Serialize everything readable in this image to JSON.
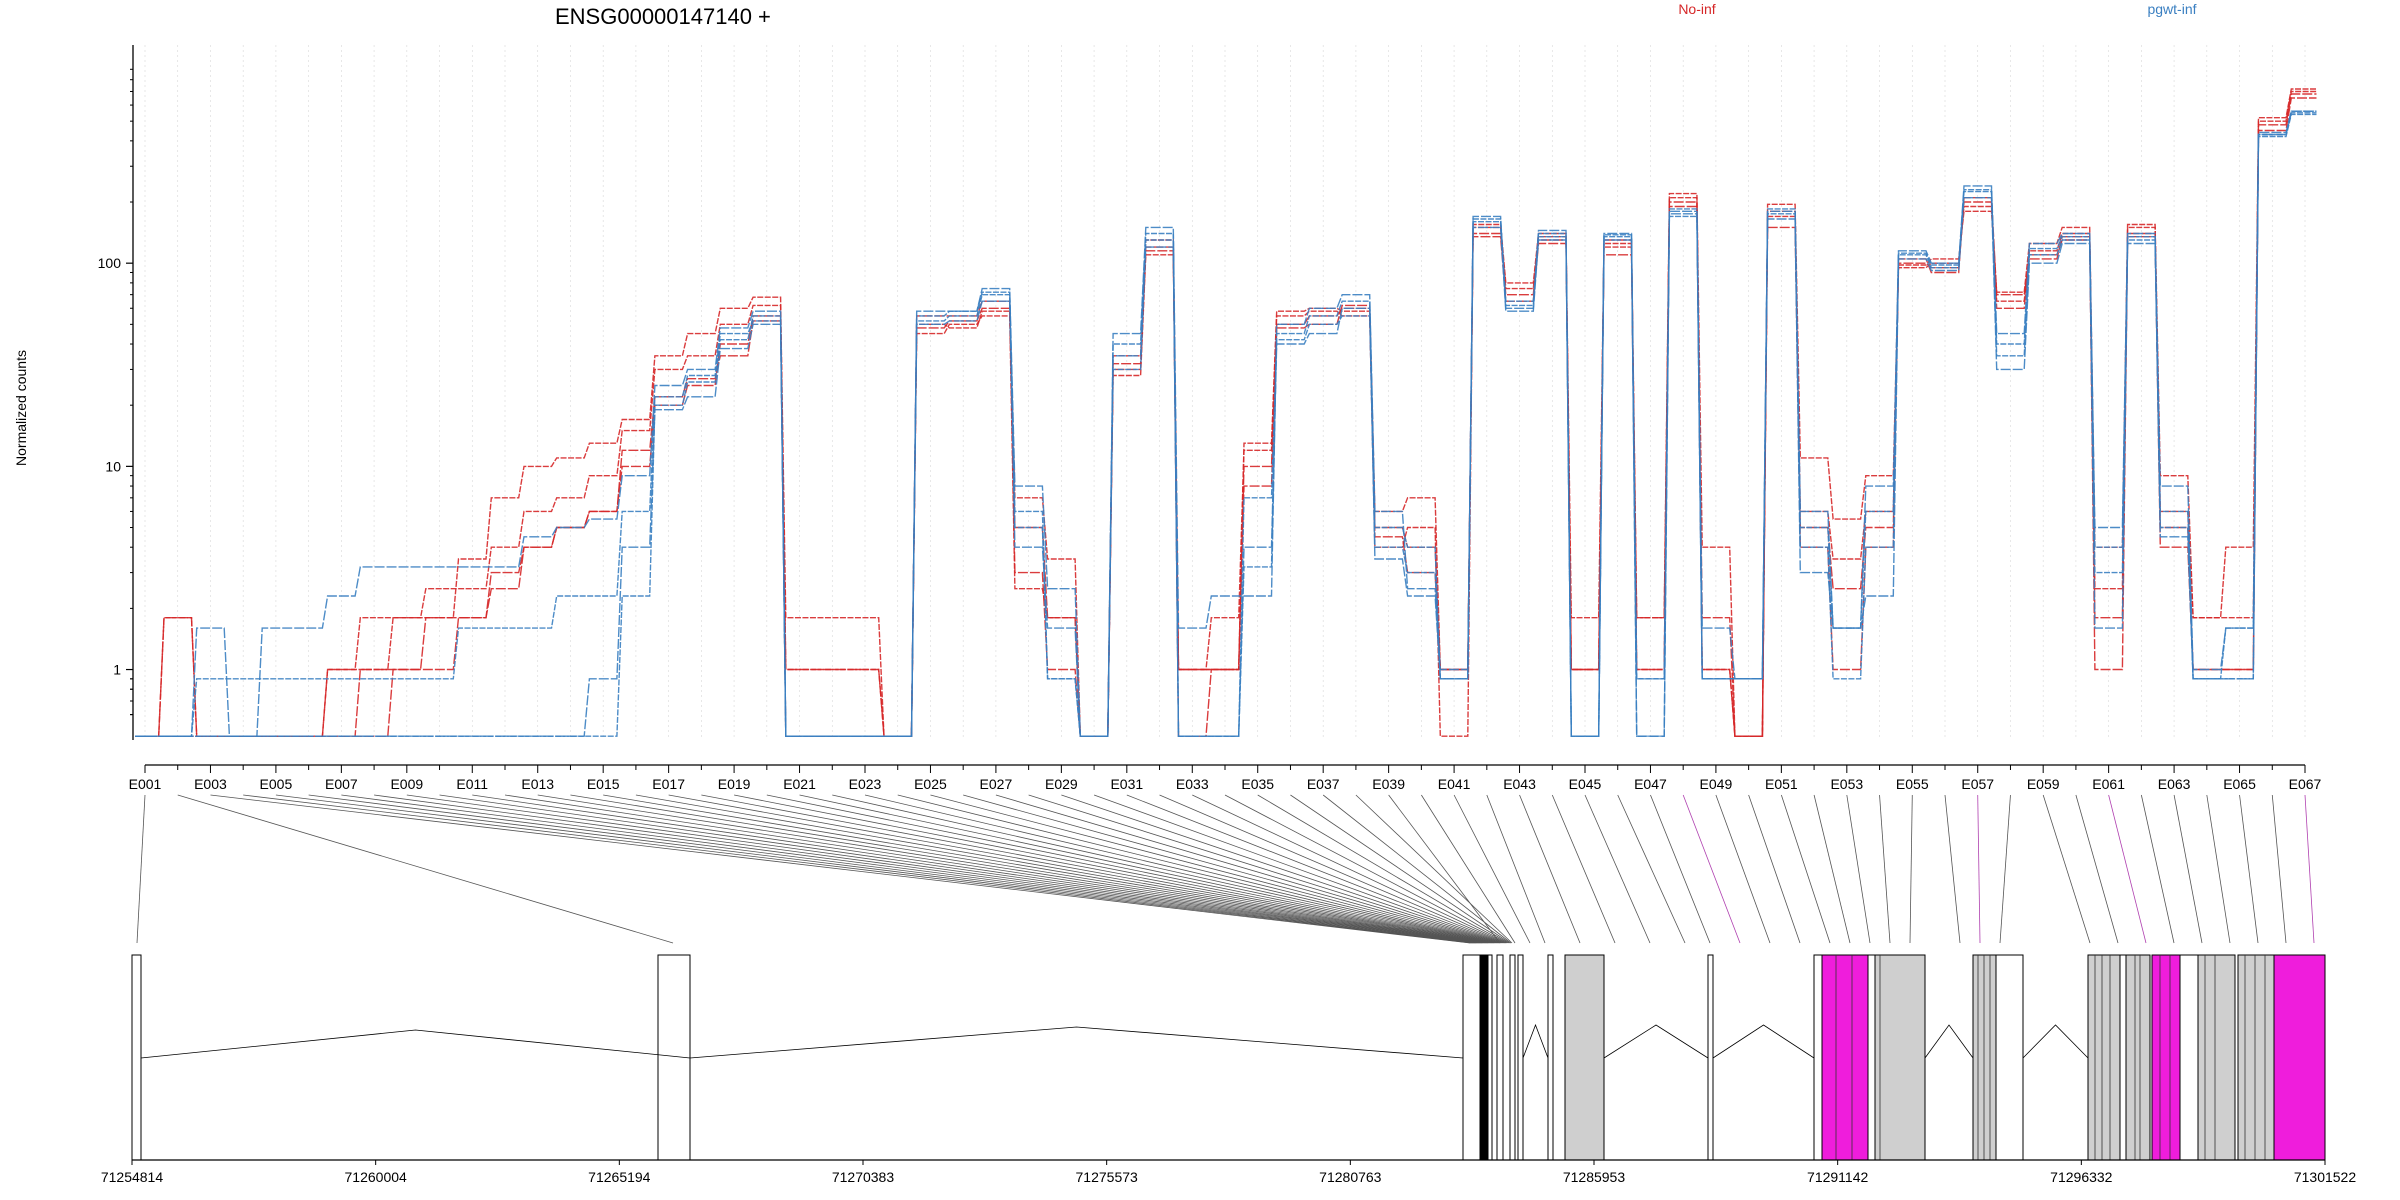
{
  "chart_data": {
    "type": "line",
    "title": "ENSG00000147140 +",
    "ylabel": "Normalized counts",
    "xlabel": "",
    "y_scale": "log",
    "y_ticks": [
      1,
      10,
      100
    ],
    "y_tick_labels": [
      "1",
      "10",
      "100"
    ],
    "ylim": [
      0.5,
      900
    ],
    "grid": "faint vertical lines at each exon bin",
    "legend": {
      "position": "top-right",
      "entries": [
        {
          "label": "No-inf",
          "color": "#d62728"
        },
        {
          "label": "pgwt-inf",
          "color": "#3a7fc1"
        }
      ]
    },
    "exon_bins": [
      "E001",
      "E002",
      "E003",
      "E004",
      "E005",
      "E006",
      "E007",
      "E008",
      "E009",
      "E010",
      "E011",
      "E012",
      "E013",
      "E014",
      "E015",
      "E016",
      "E017",
      "E018",
      "E019",
      "E020",
      "E021",
      "E022",
      "E023",
      "E024",
      "E025",
      "E026",
      "E027",
      "E028",
      "E029",
      "E030",
      "E031",
      "E032",
      "E033",
      "E034",
      "E035",
      "E036",
      "E037",
      "E038",
      "E039",
      "E040",
      "E041",
      "E042",
      "E043",
      "E044",
      "E045",
      "E046",
      "E047",
      "E048",
      "E049",
      "E050",
      "E051",
      "E052",
      "E053",
      "E054",
      "E055",
      "E056",
      "E057",
      "E058",
      "E059",
      "E060",
      "E061",
      "E062",
      "E063",
      "E064",
      "E065",
      "E066",
      "E067"
    ],
    "exon_labels_shown": [
      "E001",
      "E003",
      "E005",
      "E007",
      "E009",
      "E011",
      "E013",
      "E015",
      "E017",
      "E019",
      "E021",
      "E023",
      "E025",
      "E027",
      "E029",
      "E031",
      "E033",
      "E035",
      "E037",
      "E039",
      "E041",
      "E043",
      "E045",
      "E047",
      "E049",
      "E051",
      "E053",
      "E055",
      "E057",
      "E059",
      "E061",
      "E063",
      "E065",
      "E067"
    ],
    "series": [
      {
        "group": "No-inf",
        "color": "#d62728",
        "values": [
          0,
          1.8,
          0,
          0,
          0,
          0,
          0,
          0,
          1.0,
          1.0,
          1.8,
          2.5,
          4.0,
          5.0,
          6.0,
          12.0,
          22.0,
          27.0,
          35.0,
          52.0,
          0,
          0,
          0,
          0,
          48.0,
          52.0,
          60.0,
          5.0,
          1.8,
          0,
          30.0,
          120.0,
          0,
          1.0,
          10.0,
          50.0,
          55.0,
          60.0,
          5.0,
          4.0,
          1.0,
          140.0,
          70.0,
          130.0,
          1.0,
          130.0,
          1.8,
          200.0,
          1.0,
          0,
          180.0,
          5.0,
          2.5,
          5.0,
          100.0,
          95.0,
          200.0,
          60.0,
          110.0,
          130.0,
          1.8,
          140.0,
          5.0,
          1.0,
          1.0,
          480.0,
          680.0
        ]
      },
      {
        "group": "No-inf",
        "color": "#d62728",
        "values": [
          0,
          1.8,
          0,
          0,
          0,
          0,
          1.0,
          1.8,
          1.8,
          2.5,
          2.5,
          4.0,
          6.0,
          7.0,
          9.0,
          15.0,
          30.0,
          35.0,
          50.0,
          62.0,
          1.8,
          1.8,
          1.8,
          0,
          45.0,
          50.0,
          55.0,
          2.5,
          1.8,
          0,
          28.0,
          110.0,
          1.0,
          1.8,
          12.0,
          55.0,
          58.0,
          55.0,
          4.0,
          5.0,
          0,
          150.0,
          75.0,
          135.0,
          1.8,
          125.0,
          1.0,
          210.0,
          1.0,
          0,
          170.0,
          6.0,
          3.5,
          6.0,
          95.0,
          100.0,
          190.0,
          65.0,
          115.0,
          140.0,
          2.5,
          150.0,
          6.0,
          1.8,
          1.8,
          520.0,
          720.0
        ]
      },
      {
        "group": "No-inf",
        "color": "#d62728",
        "values": [
          0,
          0,
          0,
          0,
          0,
          0,
          0,
          1.0,
          1.0,
          1.8,
          1.8,
          3.0,
          4.0,
          5.0,
          6.0,
          10.0,
          20.0,
          25.0,
          40.0,
          55.0,
          1.0,
          1.0,
          1.0,
          0,
          55.0,
          55.0,
          65.0,
          3.0,
          1.0,
          0,
          32.0,
          115.0,
          1.0,
          1.0,
          8.0,
          48.0,
          50.0,
          62.0,
          4.5,
          3.0,
          1.0,
          135.0,
          65.0,
          125.0,
          1.0,
          110.0,
          1.0,
          190.0,
          1.8,
          0,
          150.0,
          4.0,
          1.0,
          4.0,
          105.0,
          90.0,
          210.0,
          70.0,
          105.0,
          135.0,
          1.0,
          135.0,
          4.0,
          1.0,
          1.0,
          450.0,
          650.0
        ]
      },
      {
        "group": "No-inf",
        "color": "#d62728",
        "values": [
          0,
          0,
          0,
          0,
          0,
          0,
          1.0,
          1.0,
          1.8,
          1.8,
          3.5,
          7.0,
          10.0,
          11.0,
          13.0,
          17.0,
          35.0,
          45.0,
          60.0,
          68.0,
          1.0,
          1.0,
          1.0,
          0,
          50.0,
          48.0,
          58.0,
          7.0,
          3.5,
          0,
          35.0,
          130.0,
          1.0,
          1.0,
          13.0,
          58.0,
          60.0,
          58.0,
          6.0,
          7.0,
          1.0,
          155.0,
          80.0,
          140.0,
          1.0,
          120.0,
          1.8,
          220.0,
          4.0,
          0,
          195.0,
          11.0,
          5.5,
          9.0,
          98.0,
          105.0,
          180.0,
          72.0,
          125.0,
          150.0,
          4.0,
          155.0,
          9.0,
          1.8,
          4.0,
          500.0,
          700.0
        ]
      },
      {
        "group": "pgwt-inf",
        "color": "#3a7fc1",
        "values": [
          0,
          0,
          1.6,
          0,
          1.6,
          1.6,
          2.3,
          3.2,
          3.2,
          3.2,
          3.2,
          3.2,
          4.5,
          5.0,
          5.5,
          9.0,
          25.0,
          30.0,
          48.0,
          58.0,
          0,
          0,
          0,
          0,
          58.0,
          58.0,
          75.0,
          8.0,
          2.5,
          0,
          45.0,
          150.0,
          1.6,
          2.3,
          2.3,
          50.0,
          60.0,
          70.0,
          6.0,
          2.5,
          1.0,
          170.0,
          60.0,
          145.0,
          0,
          140.0,
          0,
          180.0,
          1.6,
          0.9,
          180.0,
          6.0,
          1.6,
          8.0,
          115.0,
          100.0,
          240.0,
          45.0,
          125.0,
          140.0,
          5.0,
          140.0,
          8.0,
          1.0,
          1.6,
          430.0,
          560.0
        ]
      },
      {
        "group": "pgwt-inf",
        "color": "#3a7fc1",
        "values": [
          0,
          0,
          0.9,
          0.9,
          0.9,
          0.9,
          0.9,
          0.9,
          0.9,
          0.9,
          1.6,
          1.6,
          1.6,
          2.3,
          2.3,
          6.0,
          22.0,
          28.0,
          45.0,
          52.0,
          0,
          0,
          0,
          0,
          52.0,
          55.0,
          70.0,
          6.0,
          0.9,
          0,
          40.0,
          140.0,
          0,
          0,
          3.2,
          45.0,
          55.0,
          65.0,
          5.0,
          4.0,
          0.9,
          160.0,
          65.0,
          140.0,
          0,
          135.0,
          0.9,
          170.0,
          0.9,
          0.9,
          175.0,
          4.0,
          0.9,
          4.0,
          110.0,
          95.0,
          230.0,
          35.0,
          110.0,
          130.0,
          4.0,
          135.0,
          5.0,
          0.9,
          0.9,
          420.0,
          540.0
        ]
      },
      {
        "group": "pgwt-inf",
        "color": "#3a7fc1",
        "values": [
          0,
          0,
          0,
          0,
          0,
          0,
          0,
          0,
          0,
          0,
          0,
          0,
          0,
          0,
          0.9,
          4.0,
          19.0,
          22.0,
          38.0,
          50.0,
          0,
          0,
          0,
          0,
          50.0,
          52.0,
          65.0,
          4.0,
          1.6,
          0,
          35.0,
          120.0,
          0,
          0,
          4.0,
          40.0,
          45.0,
          60.0,
          3.5,
          2.3,
          0.9,
          150.0,
          58.0,
          130.0,
          0,
          130.0,
          0,
          175.0,
          0.9,
          0.9,
          165.0,
          3.0,
          1.6,
          2.3,
          105.0,
          92.0,
          210.0,
          30.0,
          100.0,
          125.0,
          1.6,
          125.0,
          4.5,
          0.9,
          0.9,
          440.0,
          560.0
        ]
      },
      {
        "group": "pgwt-inf",
        "color": "#3a7fc1",
        "values": [
          0,
          0,
          0,
          0,
          0,
          0,
          0,
          0,
          0,
          0,
          0,
          0,
          0,
          0,
          0,
          2.3,
          20.0,
          26.0,
          42.0,
          55.0,
          0,
          0,
          0,
          0,
          55.0,
          58.0,
          72.0,
          5.0,
          0.9,
          0,
          30.0,
          130.0,
          0,
          0,
          7.0,
          42.0,
          50.0,
          55.0,
          4.0,
          3.0,
          0.9,
          165.0,
          62.0,
          135.0,
          0,
          138.0,
          0.9,
          185.0,
          0.9,
          0.9,
          185.0,
          5.0,
          1.6,
          6.0,
          112.0,
          98.0,
          225.0,
          40.0,
          118.0,
          135.0,
          3.0,
          130.0,
          6.0,
          0.9,
          1.6,
          430.0,
          550.0
        ]
      }
    ],
    "gene_model": {
      "coordinate_axis_ticks": [
        "71254814",
        "71260004",
        "71265194",
        "71270383",
        "71275573",
        "71280763",
        "71285953",
        "71291142",
        "71296332",
        "71301522"
      ]
    }
  }
}
